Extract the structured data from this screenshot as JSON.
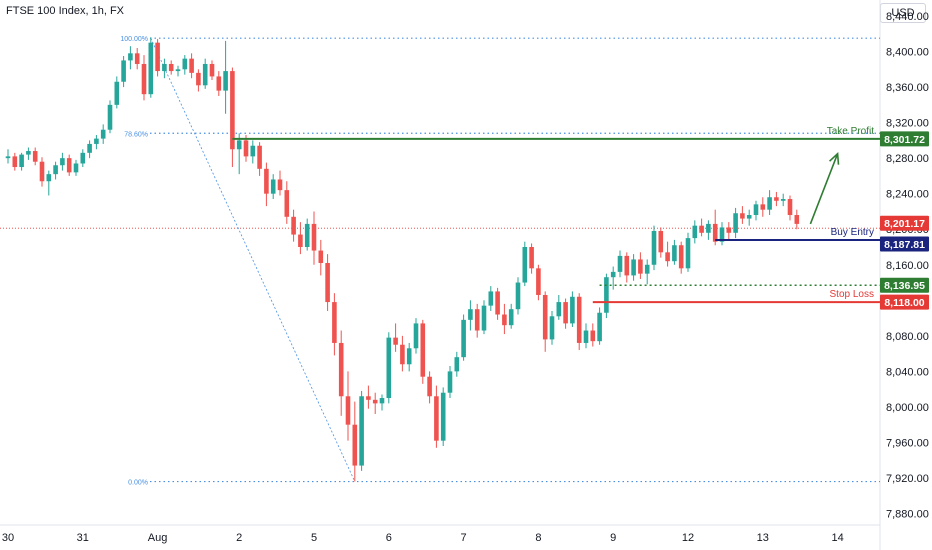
{
  "header": {
    "title": "FTSE 100 Index, 1h, FX",
    "currency": "USD"
  },
  "colors": {
    "up": "#26a69a",
    "down": "#ef5350",
    "take_profit": "#2e7d32",
    "buy_entry": "#1a237e",
    "stop_loss": "#e53935",
    "fib": "#4a90e2",
    "current_price": "#e53935",
    "axis_text": "#131722"
  },
  "chart_data": {
    "type": "candlestick",
    "symbol": "FTSE 100 Index",
    "timeframe": "1h",
    "ylim": [
      7860,
      8470
    ],
    "y_ticks": [
      "8,440.00",
      "8,400.00",
      "8,360.00",
      "8,320.00",
      "8,280.00",
      "8,240.00",
      "8,200.00",
      "8,160.00",
      "8,120.00",
      "8,080.00",
      "8,040.00",
      "8,000.00",
      "7,960.00",
      "7,920.00",
      "7,880.00"
    ],
    "y_tick_values": [
      8440,
      8400,
      8360,
      8320,
      8280,
      8240,
      8200,
      8160,
      8120,
      8080,
      8040,
      8000,
      7960,
      7920,
      7880
    ],
    "x_tick_labels": [
      "30",
      "31",
      "Aug",
      "2",
      "5",
      "6",
      "7",
      "8",
      "9",
      "12",
      "13",
      "14"
    ],
    "x_tick_index": [
      0,
      11,
      22,
      34,
      45,
      56,
      67,
      78,
      89,
      100,
      111,
      122
    ],
    "price_labels": [
      {
        "name": "take-profit-price",
        "text": "8,301.72",
        "value": 8301.72,
        "color": "#2e7d32"
      },
      {
        "name": "current-price",
        "text": "8,201.17",
        "value": 8201.17,
        "color": "#e53935"
      },
      {
        "name": "buy-entry-price",
        "text": "8,187.81",
        "value": 8187.81,
        "color": "#1a237e"
      },
      {
        "name": "support-price",
        "text": "8,136.95",
        "value": 8136.95,
        "color": "#2e7d32"
      },
      {
        "name": "stop-loss-price",
        "text": "8,118.00",
        "value": 8118.0,
        "color": "#e53935"
      }
    ],
    "levels": [
      {
        "name": "take-profit",
        "label": "Take Profit",
        "value": 8301.72,
        "start_index": 33,
        "color": "#2e7d32"
      },
      {
        "name": "buy-entry",
        "label": "Buy Entry",
        "value": 8187.81,
        "start_index": 104,
        "color": "#1a237e"
      },
      {
        "name": "support",
        "label": "",
        "value": 8136.95,
        "start_index": 87,
        "color": "#2e7d32",
        "dashed": true
      },
      {
        "name": "stop-loss",
        "label": "Stop Loss",
        "value": 8118.0,
        "start_index": 86,
        "color": "#e53935"
      }
    ],
    "fibonacci": {
      "high": 8415,
      "low": 7916,
      "high_index": 21,
      "low_index": 51,
      "levels": [
        {
          "label": "100.00%",
          "value": 8415
        },
        {
          "label": "78.60%",
          "value": 8308
        },
        {
          "label": "0.00%",
          "value": 7916
        }
      ]
    },
    "arrow": {
      "from_index": 118,
      "from_value": 8206,
      "to_index": 122,
      "to_value": 8285
    },
    "current_price": 8201.17,
    "candles": [
      [
        8280,
        8290,
        8274,
        8282
      ],
      [
        8282,
        8286,
        8266,
        8270
      ],
      [
        8270,
        8286,
        8266,
        8284
      ],
      [
        8284,
        8292,
        8278,
        8288
      ],
      [
        8288,
        8292,
        8272,
        8276
      ],
      [
        8276,
        8281,
        8248,
        8254
      ],
      [
        8254,
        8266,
        8238,
        8262
      ],
      [
        8262,
        8276,
        8256,
        8272
      ],
      [
        8272,
        8286,
        8266,
        8280
      ],
      [
        8280,
        8284,
        8260,
        8264
      ],
      [
        8264,
        8278,
        8260,
        8274
      ],
      [
        8274,
        8290,
        8270,
        8286
      ],
      [
        8286,
        8300,
        8280,
        8296
      ],
      [
        8296,
        8306,
        8290,
        8302
      ],
      [
        8302,
        8318,
        8296,
        8312
      ],
      [
        8312,
        8345,
        8308,
        8340
      ],
      [
        8340,
        8372,
        8336,
        8366
      ],
      [
        8366,
        8395,
        8360,
        8390
      ],
      [
        8390,
        8406,
        8380,
        8398
      ],
      [
        8398,
        8404,
        8380,
        8386
      ],
      [
        8386,
        8396,
        8345,
        8352
      ],
      [
        8352,
        8416,
        8348,
        8410
      ],
      [
        8410,
        8414,
        8372,
        8378
      ],
      [
        8378,
        8392,
        8370,
        8386
      ],
      [
        8386,
        8390,
        8374,
        8378
      ],
      [
        8378,
        8384,
        8372,
        8380
      ],
      [
        8380,
        8396,
        8374,
        8392
      ],
      [
        8392,
        8398,
        8370,
        8376
      ],
      [
        8376,
        8380,
        8355,
        8362
      ],
      [
        8362,
        8392,
        8358,
        8386
      ],
      [
        8386,
        8390,
        8368,
        8372
      ],
      [
        8372,
        8378,
        8350,
        8356
      ],
      [
        8356,
        8412,
        8330,
        8378
      ],
      [
        8378,
        8382,
        8270,
        8290
      ],
      [
        8290,
        8308,
        8262,
        8300
      ],
      [
        8300,
        8306,
        8276,
        8282
      ],
      [
        8282,
        8300,
        8274,
        8294
      ],
      [
        8294,
        8298,
        8260,
        8268
      ],
      [
        8268,
        8275,
        8226,
        8240
      ],
      [
        8240,
        8262,
        8234,
        8256
      ],
      [
        8256,
        8266,
        8238,
        8244
      ],
      [
        8244,
        8254,
        8206,
        8214
      ],
      [
        8214,
        8222,
        8186,
        8194
      ],
      [
        8194,
        8208,
        8172,
        8180
      ],
      [
        8180,
        8212,
        8176,
        8206
      ],
      [
        8206,
        8220,
        8160,
        8176
      ],
      [
        8176,
        8188,
        8148,
        8162
      ],
      [
        8162,
        8172,
        8108,
        8118
      ],
      [
        8118,
        8128,
        8058,
        8072
      ],
      [
        8072,
        8086,
        7990,
        8012
      ],
      [
        8012,
        8040,
        7962,
        7980
      ],
      [
        7980,
        8006,
        7916,
        7934
      ],
      [
        7934,
        8018,
        7928,
        8012
      ],
      [
        8012,
        8024,
        7998,
        8008
      ],
      [
        8008,
        8016,
        7992,
        8004
      ],
      [
        8004,
        8014,
        7996,
        8010
      ],
      [
        8010,
        8084,
        8004,
        8078
      ],
      [
        8078,
        8094,
        8062,
        8070
      ],
      [
        8070,
        8080,
        8040,
        8048
      ],
      [
        8048,
        8072,
        8040,
        8066
      ],
      [
        8066,
        8100,
        8060,
        8094
      ],
      [
        8094,
        8098,
        8026,
        8034
      ],
      [
        8034,
        8040,
        8004,
        8012
      ],
      [
        8012,
        8024,
        7954,
        7962
      ],
      [
        7962,
        8022,
        7956,
        8016
      ],
      [
        8016,
        8046,
        8010,
        8040
      ],
      [
        8040,
        8062,
        8034,
        8056
      ],
      [
        8056,
        8104,
        8052,
        8098
      ],
      [
        8098,
        8120,
        8086,
        8110
      ],
      [
        8110,
        8116,
        8078,
        8086
      ],
      [
        8086,
        8120,
        8082,
        8114
      ],
      [
        8114,
        8136,
        8108,
        8130
      ],
      [
        8130,
        8134,
        8098,
        8104
      ],
      [
        8104,
        8116,
        8082,
        8092
      ],
      [
        8092,
        8116,
        8088,
        8110
      ],
      [
        8110,
        8146,
        8104,
        8140
      ],
      [
        8140,
        8186,
        8136,
        8180
      ],
      [
        8180,
        8184,
        8150,
        8156
      ],
      [
        8156,
        8160,
        8120,
        8126
      ],
      [
        8126,
        8130,
        8062,
        8076
      ],
      [
        8076,
        8108,
        8070,
        8102
      ],
      [
        8102,
        8126,
        8098,
        8118
      ],
      [
        8118,
        8122,
        8088,
        8094
      ],
      [
        8094,
        8130,
        8090,
        8124
      ],
      [
        8124,
        8128,
        8064,
        8072
      ],
      [
        8072,
        8094,
        8066,
        8086
      ],
      [
        8086,
        8094,
        8068,
        8074
      ],
      [
        8074,
        8112,
        8070,
        8106
      ],
      [
        8106,
        8150,
        8100,
        8146
      ],
      [
        8146,
        8158,
        8132,
        8152
      ],
      [
        8152,
        8176,
        8146,
        8170
      ],
      [
        8170,
        8174,
        8140,
        8148
      ],
      [
        8148,
        8172,
        8142,
        8166
      ],
      [
        8166,
        8174,
        8144,
        8150
      ],
      [
        8150,
        8166,
        8138,
        8160
      ],
      [
        8160,
        8204,
        8154,
        8198
      ],
      [
        8198,
        8202,
        8168,
        8174
      ],
      [
        8174,
        8186,
        8158,
        8164
      ],
      [
        8164,
        8188,
        8160,
        8182
      ],
      [
        8182,
        8186,
        8150,
        8156
      ],
      [
        8156,
        8196,
        8152,
        8190
      ],
      [
        8190,
        8210,
        8184,
        8204
      ],
      [
        8204,
        8212,
        8192,
        8196
      ],
      [
        8196,
        8210,
        8188,
        8206
      ],
      [
        8206,
        8222,
        8182,
        8186
      ],
      [
        8186,
        8208,
        8182,
        8202
      ],
      [
        8202,
        8208,
        8188,
        8196
      ],
      [
        8196,
        8224,
        8190,
        8218
      ],
      [
        8218,
        8226,
        8206,
        8212
      ],
      [
        8212,
        8222,
        8204,
        8216
      ],
      [
        8216,
        8232,
        8210,
        8228
      ],
      [
        8228,
        8236,
        8214,
        8222
      ],
      [
        8222,
        8244,
        8216,
        8236
      ],
      [
        8236,
        8242,
        8226,
        8232
      ],
      [
        8232,
        8240,
        8226,
        8234
      ],
      [
        8234,
        8238,
        8210,
        8216
      ],
      [
        8216,
        8222,
        8200,
        8206
      ]
    ]
  }
}
